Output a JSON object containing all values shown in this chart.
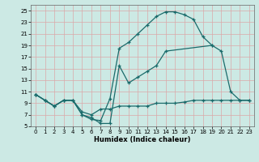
{
  "xlabel": "Humidex (Indice chaleur)",
  "xlim": [
    -0.5,
    23.5
  ],
  "ylim": [
    5,
    26
  ],
  "xticks": [
    0,
    1,
    2,
    3,
    4,
    5,
    6,
    7,
    8,
    9,
    10,
    11,
    12,
    13,
    14,
    15,
    16,
    17,
    18,
    19,
    20,
    21,
    22,
    23
  ],
  "yticks": [
    5,
    7,
    9,
    11,
    13,
    15,
    17,
    19,
    21,
    23,
    25
  ],
  "bg_color": "#cce9e4",
  "grid_color": "#dba8a8",
  "line_color": "#1a6b6b",
  "curve1_x": [
    0,
    1,
    2,
    3,
    4,
    5,
    6,
    7,
    8,
    9,
    10,
    11,
    12,
    13,
    14,
    15,
    16,
    17,
    18,
    19
  ],
  "curve1_y": [
    10.5,
    9.5,
    8.5,
    9.5,
    9.5,
    7.0,
    6.2,
    6.0,
    9.8,
    18.5,
    19.5,
    21.0,
    22.5,
    24.0,
    24.8,
    24.8,
    24.3,
    23.5,
    20.5,
    19.0
  ],
  "curve2_x": [
    0,
    1,
    2,
    3,
    4,
    5,
    6,
    7,
    8,
    9,
    10,
    11,
    12,
    13,
    14,
    19,
    20,
    21,
    22,
    23
  ],
  "curve2_y": [
    10.5,
    9.5,
    8.5,
    9.5,
    9.5,
    7.0,
    6.5,
    5.5,
    5.5,
    15.5,
    12.5,
    13.5,
    14.5,
    15.5,
    18.0,
    19.0,
    18.0,
    11.0,
    9.5,
    9.5
  ],
  "curve3_x": [
    0,
    1,
    2,
    3,
    4,
    5,
    6,
    7,
    8,
    9,
    10,
    11,
    12,
    13,
    14,
    15,
    16,
    17,
    18,
    19,
    20,
    21,
    22,
    23
  ],
  "curve3_y": [
    10.5,
    9.5,
    8.5,
    9.5,
    9.5,
    7.5,
    7.0,
    8.0,
    8.0,
    8.5,
    8.5,
    8.5,
    8.5,
    9.0,
    9.0,
    9.0,
    9.2,
    9.5,
    9.5,
    9.5,
    9.5,
    9.5,
    9.5,
    9.5
  ]
}
